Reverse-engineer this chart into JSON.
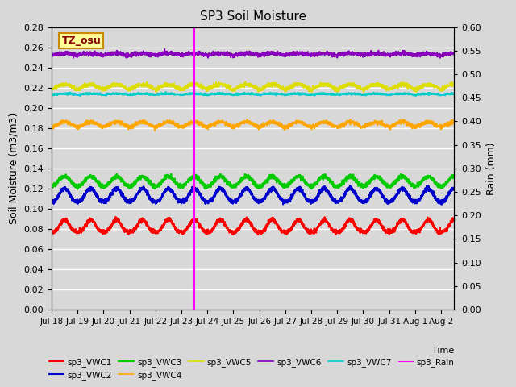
{
  "title": "SP3 Soil Moisture",
  "ylabel_left": "Soil Moisture (m3/m3)",
  "ylabel_right": "Rain (mm)",
  "xlabel": "Time",
  "ylim_left": [
    0.0,
    0.28
  ],
  "ylim_right": [
    0.0,
    0.6
  ],
  "x_tick_labels": [
    "Jul 18",
    "Jul 19",
    "Jul 20",
    "Jul 21",
    "Jul 22",
    "Jul 23",
    "Jul 24",
    "Jul 25",
    "Jul 26",
    "Jul 27",
    "Jul 28",
    "Jul 29",
    "Jul 30",
    "Jul 31",
    "Aug 1",
    "Aug 2"
  ],
  "vline_day": 5.5,
  "vline_color": "#FF00FF",
  "tz_label": "TZ_osu",
  "series": [
    {
      "name": "sp3_VWC1",
      "color": "#FF0000",
      "base": 0.077,
      "amp": 0.012,
      "sharpness": 3.0,
      "noise": 0.001
    },
    {
      "name": "sp3_VWC2",
      "color": "#0000CC",
      "base": 0.107,
      "amp": 0.013,
      "sharpness": 2.5,
      "noise": 0.001
    },
    {
      "name": "sp3_VWC3",
      "color": "#00CC00",
      "base": 0.122,
      "amp": 0.01,
      "sharpness": 2.0,
      "noise": 0.001
    },
    {
      "name": "sp3_VWC4",
      "color": "#FFA500",
      "base": 0.181,
      "amp": 0.005,
      "sharpness": 1.5,
      "noise": 0.001
    },
    {
      "name": "sp3_VWC5",
      "color": "#DDDD00",
      "base": 0.218,
      "amp": 0.005,
      "sharpness": 1.2,
      "noise": 0.001
    },
    {
      "name": "sp3_VWC6",
      "color": "#8800BB",
      "base": 0.252,
      "amp": 0.002,
      "sharpness": 1.0,
      "noise": 0.001
    },
    {
      "name": "sp3_VWC7",
      "color": "#00CCCC",
      "base": 0.213,
      "amp": 0.001,
      "sharpness": 1.0,
      "noise": 0.0005
    }
  ],
  "rain_color": "#FF00FF",
  "background_color": "#D8D8D8",
  "grid_color": "#FFFFFF",
  "plot_bg_color": "#D8D8D8"
}
